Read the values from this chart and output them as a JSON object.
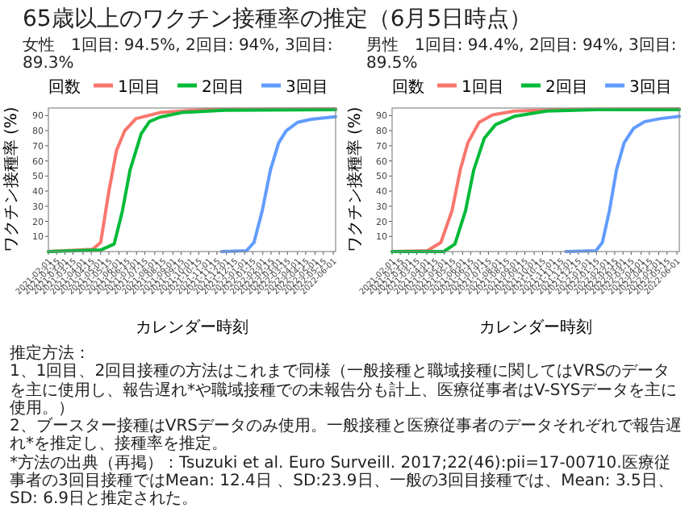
{
  "chart_data": [
    {
      "type": "line",
      "title": "65歳以上のワクチン接種率の推定（6月5日時点）",
      "subtitle": "女性　1回目: 94.5%, 2回目: 94%, 3回目: 89.3%",
      "xlabel": "カレンダー時刻",
      "ylabel": "ワクチン接種率 (%)",
      "legend_title": "回数",
      "legend": "top",
      "xlim": [
        "2021-02-01",
        "2022-06-05"
      ],
      "ylim": [
        0,
        95
      ],
      "yticks": [
        10,
        20,
        30,
        40,
        50,
        60,
        70,
        80,
        90
      ],
      "xticks": [
        "2021-02-01",
        "2021-02-15",
        "2021-03-01",
        "2021-03-15",
        "2021-04-01",
        "2021-04-15",
        "2021-05-01",
        "2021-05-15",
        "2021-06-01",
        "2021-06-15",
        "2021-07-01",
        "2021-07-15",
        "2021-08-01",
        "2021-08-15",
        "2021-09-01",
        "2021-09-15",
        "2021-10-01",
        "2021-10-15",
        "2021-11-01",
        "2021-11-15",
        "2021-12-01",
        "2021-12-15",
        "2022-01-01",
        "2022-01-15",
        "2022-02-01",
        "2022-02-15",
        "2022-03-01",
        "2022-03-15",
        "2022-04-01",
        "2022-04-15",
        "2022-05-01",
        "2022-05-15",
        "2022-06-01"
      ],
      "series": [
        {
          "name": "1回目",
          "color": "#f8766d",
          "x": [
            "2021-02-01",
            "2021-04-17",
            "2021-05-01",
            "2021-05-15",
            "2021-05-28",
            "2021-06-11",
            "2021-06-30",
            "2021-08-10",
            "2021-10-22",
            "2022-06-05"
          ],
          "values": [
            0,
            1.5,
            6,
            40,
            67,
            80,
            88,
            92,
            94,
            94.5
          ]
        },
        {
          "name": "2回目",
          "color": "#00ba38",
          "x": [
            "2021-02-01",
            "2021-05-01",
            "2021-05-24",
            "2021-06-07",
            "2021-06-20",
            "2021-07-09",
            "2021-07-23",
            "2021-08-10",
            "2021-09-16",
            "2021-11-28",
            "2022-06-05"
          ],
          "values": [
            0,
            1,
            5,
            27,
            54,
            78,
            86,
            89,
            92,
            93.5,
            94
          ]
        },
        {
          "name": "3回目",
          "color": "#619cff",
          "x": [
            "2021-11-23",
            "2022-01-04",
            "2022-01-17",
            "2022-01-31",
            "2022-02-14",
            "2022-02-28",
            "2022-03-13",
            "2022-04-01",
            "2022-04-24",
            "2022-06-05"
          ],
          "values": [
            0,
            0.5,
            6,
            27,
            54,
            72,
            80,
            85.5,
            87.5,
            89.3
          ]
        }
      ]
    },
    {
      "type": "line",
      "subtitle": "男性　1回目: 94.4%, 2回目: 94%, 3回目: 89.5%",
      "xlabel": "カレンダー時刻",
      "ylabel": "ワクチン接種率 (%)",
      "legend_title": "回数",
      "legend": "top",
      "xlim": [
        "2021-02-01",
        "2022-06-05"
      ],
      "ylim": [
        0,
        95
      ],
      "yticks": [
        10,
        20,
        30,
        40,
        50,
        60,
        70,
        80,
        90
      ],
      "xticks": [
        "2021-02-01",
        "2021-02-15",
        "2021-03-01",
        "2021-03-15",
        "2021-04-01",
        "2021-04-15",
        "2021-05-01",
        "2021-05-15",
        "2021-06-01",
        "2021-06-15",
        "2021-07-01",
        "2021-07-15",
        "2021-08-01",
        "2021-08-15",
        "2021-09-01",
        "2021-09-15",
        "2021-10-01",
        "2021-10-15",
        "2021-11-01",
        "2021-11-15",
        "2021-12-01",
        "2021-12-15",
        "2022-01-01",
        "2022-01-15",
        "2022-02-01",
        "2022-02-15",
        "2022-03-01",
        "2022-03-15",
        "2022-04-01",
        "2022-04-15",
        "2022-05-01",
        "2022-05-15",
        "2022-06-01"
      ],
      "series": [
        {
          "name": "1回目",
          "color": "#f8766d",
          "x": [
            "2021-02-01",
            "2021-04-02",
            "2021-04-25",
            "2021-05-14",
            "2021-05-28",
            "2021-06-10",
            "2021-06-29",
            "2021-07-22",
            "2021-08-28",
            "2021-11-10",
            "2022-06-05"
          ],
          "values": [
            0,
            0.5,
            6,
            27,
            54,
            72,
            85.5,
            90.5,
            93,
            94,
            94.4
          ]
        },
        {
          "name": "2回目",
          "color": "#00ba38",
          "x": [
            "2021-02-01",
            "2021-04-30",
            "2021-05-19",
            "2021-06-06",
            "2021-06-20",
            "2021-07-08",
            "2021-07-27",
            "2021-08-28",
            "2021-10-22",
            "2022-01-14",
            "2022-06-05"
          ],
          "values": [
            0,
            0,
            5,
            27,
            54,
            75,
            84,
            89.5,
            93,
            94,
            94
          ]
        },
        {
          "name": "3回目",
          "color": "#619cff",
          "x": [
            "2021-11-24",
            "2022-01-14",
            "2022-01-25",
            "2022-02-06",
            "2022-02-18",
            "2022-03-03",
            "2022-03-19",
            "2022-04-07",
            "2022-05-04",
            "2022-06-05"
          ],
          "values": [
            0,
            0.5,
            6,
            27,
            54,
            72,
            81.5,
            86,
            88,
            89.5
          ]
        }
      ],
      "annotations": [
        "推定方法：",
        "1、1回目、2回目接種の方法はこれまで同様（一般接種と職域接種に関してはVRSのデータを主に使用し、報告遅れ*や職域接種での未報告分も計上、医療従事者はV-SYSデータを主に使用。）",
        "2、ブースター接種はVRSデータのみ使用。一般接種と医療従事者のデータそれぞれで報告遅れ*を推定し、接種率を推定。",
        "*方法の出典（再掲）：Tsuzuki et al. Euro Surveill. 2017;22(46):pii=17-00710.医療従事者の3回目接種ではMean: 12.4日 、SD:23.9日、一般の3回目接種では、Mean: 3.5日、SD: 6.9日と推定された。"
      ]
    }
  ]
}
